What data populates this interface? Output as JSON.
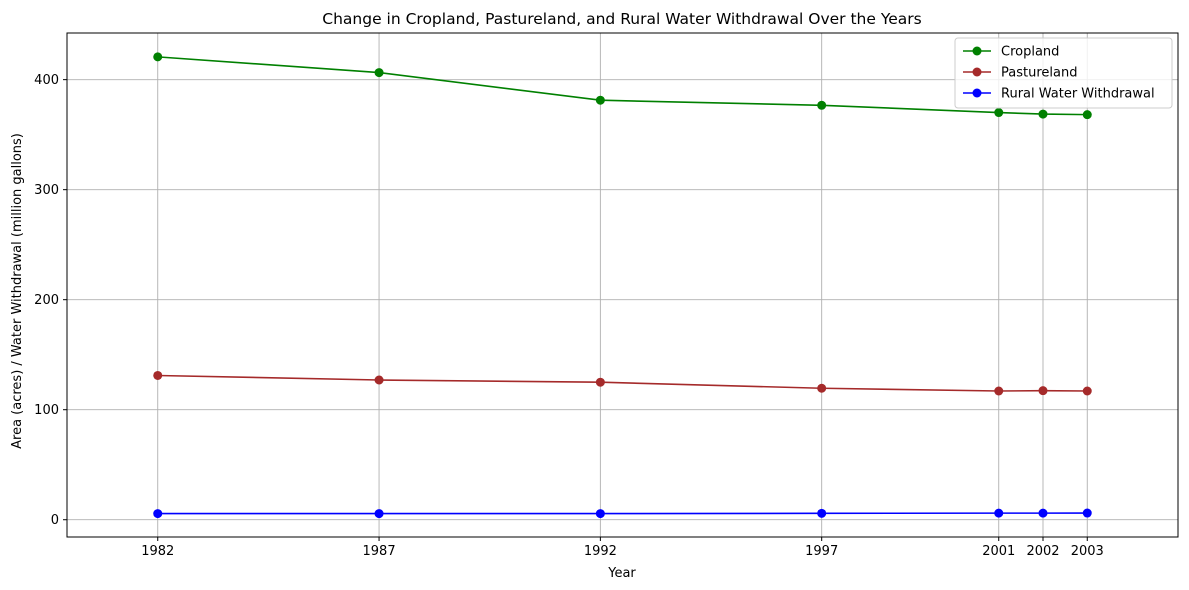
{
  "chart_data": {
    "type": "line",
    "title": "Change in Cropland, Pastureland, and Rural Water Withdrawal Over the Years",
    "xlabel": "Year",
    "ylabel": "Area (acres) / Water Withdrawal (million gallons)",
    "x": [
      1982,
      1987,
      1992,
      1997,
      2001,
      2002,
      2003
    ],
    "xlim": [
      1979.95,
      2005.05
    ],
    "ylim": [
      -15.7,
      442.4
    ],
    "yticks": [
      0,
      100,
      200,
      300,
      400
    ],
    "grid": true,
    "legend_position": "top-right",
    "series": [
      {
        "name": "Cropland",
        "color": "#008000",
        "values": [
          420.7,
          406.4,
          381.3,
          376.7,
          370.1,
          368.7,
          368.2
        ]
      },
      {
        "name": "Pastureland",
        "color": "#a52a2a",
        "values": [
          131.1,
          127.0,
          125.0,
          119.5,
          117.0,
          117.3,
          117.0
        ]
      },
      {
        "name": "Rural Water Withdrawal",
        "color": "#0000ff",
        "values": [
          5.6,
          5.6,
          5.6,
          5.8,
          6.0,
          6.0,
          6.1
        ]
      }
    ]
  }
}
